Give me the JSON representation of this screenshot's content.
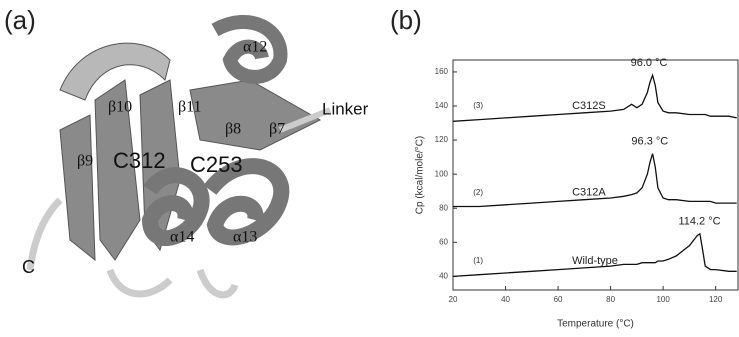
{
  "panel_a": {
    "tag": "(a)",
    "labels": [
      "α12",
      "β10",
      "β11",
      "β8",
      "β7",
      "Linker",
      "β9",
      "C312",
      "C253",
      "α14",
      "α13",
      "C"
    ]
  },
  "chart_data": {
    "type": "line",
    "tag": "(b)",
    "x_label": "Temperature (°C)",
    "y_label": "Cp (kcal/mole/°C)",
    "x": [
      20,
      30,
      40,
      50,
      60,
      70,
      80,
      85,
      88,
      90,
      92,
      94,
      95,
      96,
      97,
      98,
      100,
      102,
      105,
      110,
      112,
      113,
      114,
      115,
      116,
      118,
      120,
      125,
      128
    ],
    "series": [
      {
        "name": "C312S",
        "number": "(3)",
        "color": "#111",
        "peak": {
          "value": 96.0,
          "label": "96.0 °C"
        },
        "values": [
          131,
          132,
          133,
          134,
          135,
          136,
          137,
          138,
          141,
          139,
          141,
          148,
          154,
          158,
          152,
          142,
          137,
          136,
          136,
          135,
          135,
          135,
          135,
          135,
          135,
          134,
          134,
          134,
          133
        ]
      },
      {
        "name": "C312A",
        "number": "(2)",
        "color": "#111",
        "peak": {
          "value": 96.3,
          "label": "96.3 °C"
        },
        "values": [
          81,
          81,
          82,
          83,
          84,
          85,
          86,
          87,
          88,
          89,
          92,
          100,
          107,
          112,
          104,
          92,
          86,
          85,
          85,
          84,
          84,
          84,
          84,
          84,
          84,
          84,
          83,
          83,
          83
        ]
      },
      {
        "name": "Wild-type",
        "number": "(1)",
        "color": "#111",
        "peak": {
          "value": 114.2,
          "label": "114.2 °C"
        },
        "values": [
          40,
          41,
          42,
          43,
          44,
          45,
          46,
          47,
          47,
          47,
          48,
          48,
          48,
          48,
          48,
          49,
          49,
          50,
          52,
          58,
          62,
          64,
          65,
          56,
          46,
          44,
          44,
          43,
          43
        ]
      }
    ],
    "xlim": [
      20,
      128.5
    ],
    "ylim": [
      32,
      167
    ],
    "xticks": [
      20,
      40,
      60,
      80,
      100,
      120
    ],
    "yticks": [
      40,
      60,
      80,
      100,
      120,
      140,
      160
    ]
  }
}
